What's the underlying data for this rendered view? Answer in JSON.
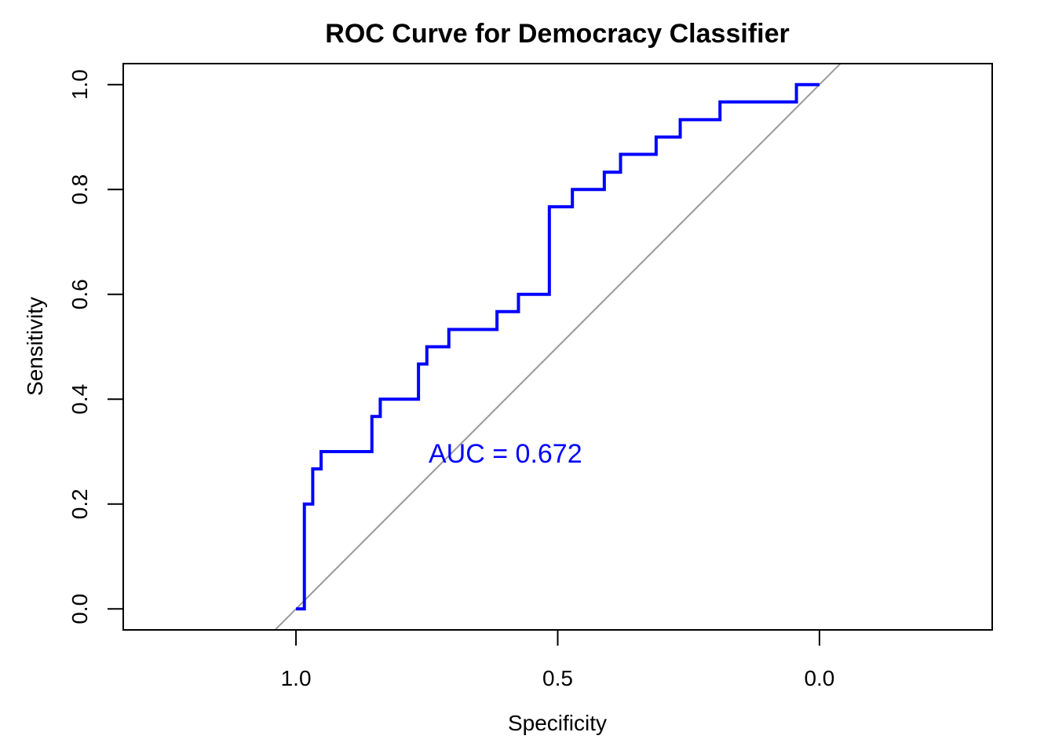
{
  "chart_data": {
    "type": "line",
    "title": "ROC Curve for Democracy Classifier",
    "xlabel": "Specificity",
    "ylabel": "Sensitivity",
    "x_axis_reversed": true,
    "xlim": [
      1.33,
      -0.33
    ],
    "ylim": [
      -0.04,
      1.04
    ],
    "x_ticks": [
      1.0,
      0.5,
      0.0
    ],
    "x_tick_labels": [
      "1.0",
      "0.5",
      "0.0"
    ],
    "y_ticks": [
      0.0,
      0.2,
      0.4,
      0.6,
      0.8,
      1.0
    ],
    "y_tick_labels": [
      "0.0",
      "0.2",
      "0.4",
      "0.6",
      "0.8",
      "1.0"
    ],
    "grid": false,
    "series": [
      {
        "color": "#0000ff",
        "points": [
          [
            1.0,
            0.0
          ],
          [
            0.984,
            0.0
          ],
          [
            0.984,
            0.2
          ],
          [
            0.968,
            0.2
          ],
          [
            0.968,
            0.267
          ],
          [
            0.952,
            0.267
          ],
          [
            0.952,
            0.3
          ],
          [
            0.855,
            0.3
          ],
          [
            0.855,
            0.367
          ],
          [
            0.839,
            0.367
          ],
          [
            0.839,
            0.4
          ],
          [
            0.766,
            0.4
          ],
          [
            0.766,
            0.467
          ],
          [
            0.75,
            0.467
          ],
          [
            0.75,
            0.5
          ],
          [
            0.708,
            0.5
          ],
          [
            0.708,
            0.533
          ],
          [
            0.616,
            0.533
          ],
          [
            0.616,
            0.567
          ],
          [
            0.575,
            0.567
          ],
          [
            0.575,
            0.6
          ],
          [
            0.516,
            0.6
          ],
          [
            0.516,
            0.767
          ],
          [
            0.472,
            0.767
          ],
          [
            0.472,
            0.8
          ],
          [
            0.411,
            0.8
          ],
          [
            0.411,
            0.833
          ],
          [
            0.38,
            0.833
          ],
          [
            0.38,
            0.867
          ],
          [
            0.312,
            0.867
          ],
          [
            0.312,
            0.9
          ],
          [
            0.266,
            0.9
          ],
          [
            0.266,
            0.933
          ],
          [
            0.19,
            0.933
          ],
          [
            0.19,
            0.967
          ],
          [
            0.044,
            0.967
          ],
          [
            0.044,
            1.0
          ],
          [
            0.0,
            1.0
          ]
        ]
      }
    ],
    "reference_line": {
      "color": "#999999",
      "from": [
        1,
        0
      ],
      "to": [
        0,
        1
      ]
    },
    "annotation": {
      "text": "AUC = 0.672",
      "x": 0.6,
      "y": 0.297,
      "color": "#0000ff"
    }
  }
}
